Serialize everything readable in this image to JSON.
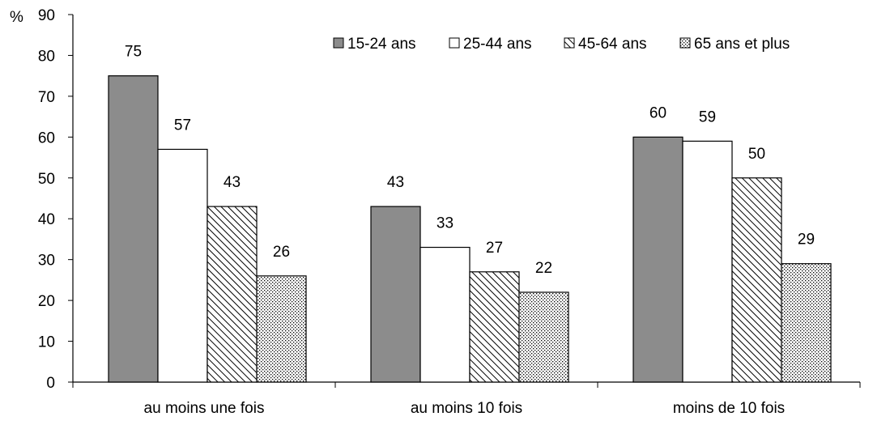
{
  "chart_data": {
    "type": "bar",
    "y_unit_label": "%",
    "categories": [
      "au moins une fois",
      "au moins 10 fois",
      "moins de 10 fois"
    ],
    "series": [
      {
        "name": "15-24 ans",
        "values": [
          75,
          43,
          60
        ],
        "style": "solid",
        "color": "#8c8c8c"
      },
      {
        "name": "25-44 ans",
        "values": [
          57,
          33,
          59
        ],
        "style": "white",
        "color": "#ffffff"
      },
      {
        "name": "45-64 ans",
        "values": [
          43,
          27,
          50
        ],
        "style": "diagonal-hatch",
        "color": "#000000"
      },
      {
        "name": "65 ans et plus",
        "values": [
          26,
          22,
          29
        ],
        "style": "dots",
        "color": "#000000"
      }
    ],
    "ylim": [
      0,
      90
    ],
    "yticks": [
      0,
      10,
      20,
      30,
      40,
      50,
      60,
      70,
      80,
      90
    ],
    "grid": false,
    "legend_position": "top-right",
    "data_labels": true
  }
}
